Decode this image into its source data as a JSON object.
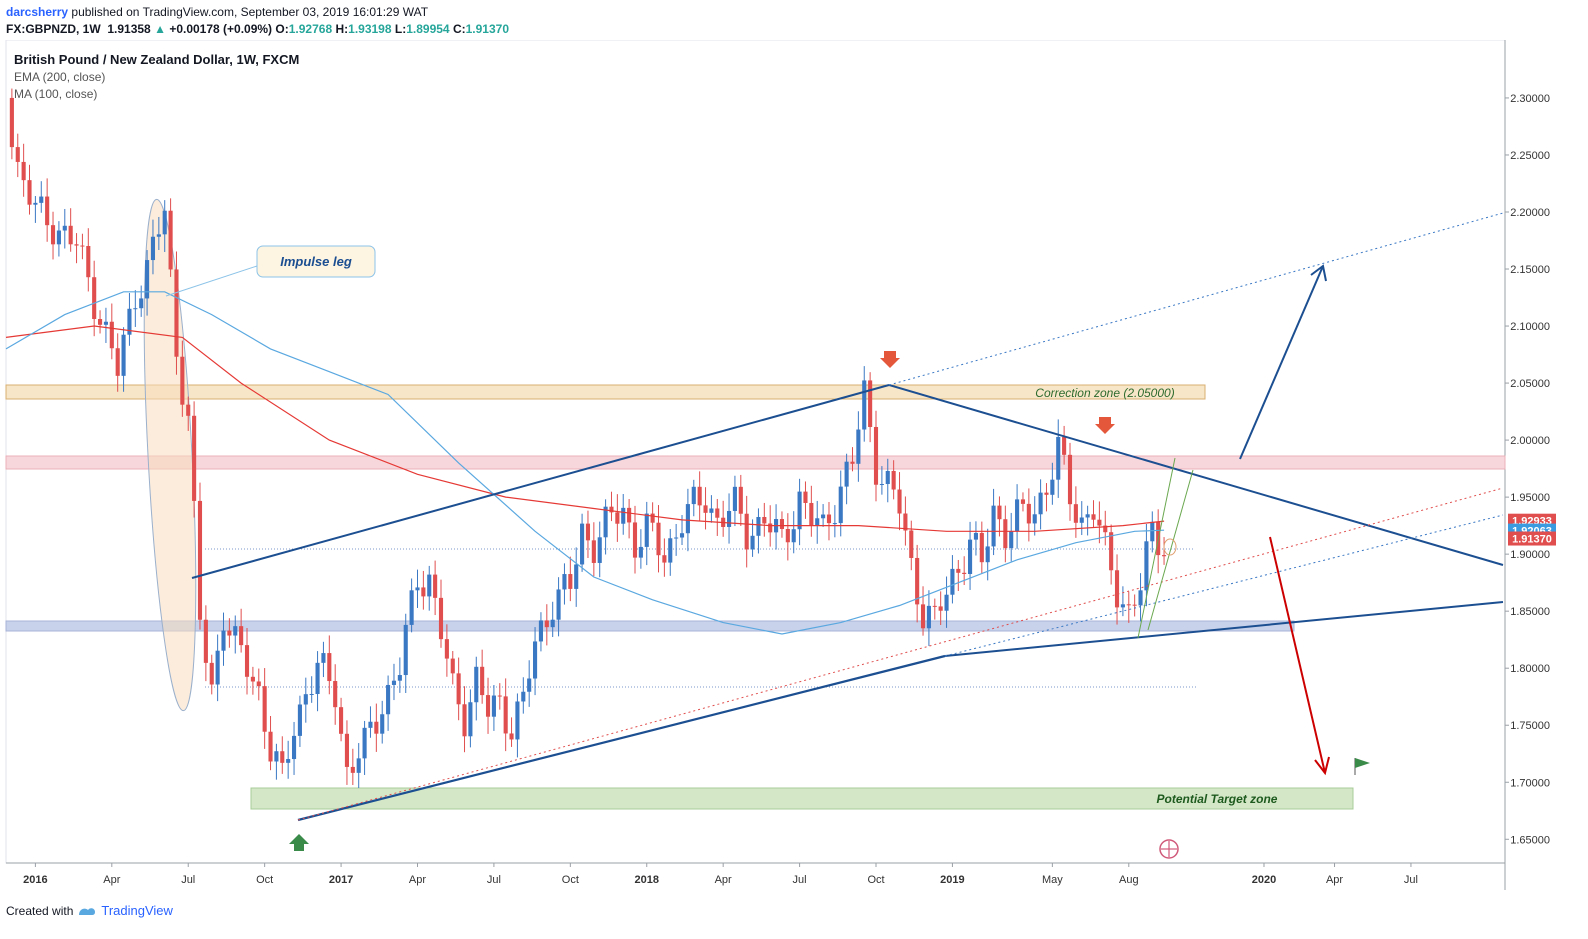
{
  "header": {
    "author": "darcsherry",
    "published_text": "published on TradingView.com, September 03, 2019 16:01:29 WAT",
    "symbol": "FX:GBPNZD, 1W",
    "last": "1.91358",
    "change": "+0.00178 (+0.09%)",
    "o_label": "O:",
    "o": "1.92768",
    "h_label": "H:",
    "h": "1.93198",
    "l_label": "L:",
    "l": "1.89954",
    "c_label": "C:",
    "c": "1.91370"
  },
  "legend": {
    "title": "British Pound / New Zealand Dollar, 1W, FXCM",
    "ema": "EMA (200, close)",
    "ma": "MA (100, close)"
  },
  "footer": {
    "created_with": "Created with",
    "brand": "TradingView"
  },
  "colors": {
    "up": "#3a78c4",
    "down": "#e04e4e",
    "ema": "#e53935",
    "ma": "#5aa8e0",
    "trend": "#1c4f91",
    "target_arrow": "#cc0000",
    "zone_orange": "#f8e6c8",
    "zone_pink": "#f8d7dc",
    "zone_blue": "#c8d2ea",
    "zone_green": "#d4e8c8"
  },
  "chart_data": {
    "type": "candlestick",
    "title": "British Pound / New Zealand Dollar, 1W, FXCM",
    "x_tick_labels": [
      "2016",
      "Apr",
      "Jul",
      "Oct",
      "2017",
      "Apr",
      "Jul",
      "Oct",
      "2018",
      "Apr",
      "Jul",
      "Oct",
      "2019",
      "May",
      "Aug",
      "2020",
      "Apr",
      "Jul"
    ],
    "x_tick_weeks": [
      0,
      13,
      26,
      39,
      52,
      65,
      78,
      91,
      104,
      117,
      130,
      143,
      156,
      173,
      186,
      209,
      221,
      234
    ],
    "y_tick_labels": [
      "2.30000",
      "2.25000",
      "2.20000",
      "2.15000",
      "2.10000",
      "2.05000",
      "2.00000",
      "1.95000",
      "1.90000",
      "1.85000",
      "1.80000",
      "1.75000",
      "1.70000",
      "1.65000"
    ],
    "y_ticks": [
      2.3,
      2.25,
      2.2,
      2.15,
      2.1,
      2.05,
      2.0,
      1.95,
      1.9,
      1.85,
      1.8,
      1.75,
      1.7,
      1.65
    ],
    "ylim": [
      1.6292,
      2.3508
    ],
    "xlim_weeks": [
      -5,
      250
    ],
    "price_labels": [
      {
        "text": "1.92933",
        "value": 1.92933,
        "color": "#e04e4e"
      },
      {
        "text": "1.92063",
        "value": 1.92063,
        "color": "#3a9be0"
      },
      {
        "text": "1.91370",
        "value": 1.9137,
        "color": "#e04e4e"
      }
    ],
    "annotations": {
      "impulse_leg": "Impulse leg",
      "correction_zone": "Correction zone (2.05000)",
      "target_zone": "Potential Target zone"
    },
    "anchor_closes": [
      [
        -5,
        2.3
      ],
      [
        -3,
        2.24
      ],
      [
        0,
        2.2
      ],
      [
        3,
        2.19
      ],
      [
        7,
        2.17
      ],
      [
        11,
        2.11
      ],
      [
        14,
        2.06
      ],
      [
        17,
        2.13
      ],
      [
        19,
        2.15
      ],
      [
        22,
        2.2
      ],
      [
        24,
        2.08
      ],
      [
        26,
        2.02
      ],
      [
        28,
        1.84
      ],
      [
        30,
        1.78
      ],
      [
        32,
        1.85
      ],
      [
        34,
        1.82
      ],
      [
        36,
        1.8
      ],
      [
        38,
        1.78
      ],
      [
        40,
        1.73
      ],
      [
        42,
        1.7
      ],
      [
        44,
        1.75
      ],
      [
        46,
        1.78
      ],
      [
        48,
        1.8
      ],
      [
        51,
        1.78
      ],
      [
        53,
        1.71
      ],
      [
        56,
        1.73
      ],
      [
        59,
        1.77
      ],
      [
        62,
        1.8
      ],
      [
        65,
        1.88
      ],
      [
        67,
        1.88
      ],
      [
        69,
        1.83
      ],
      [
        71,
        1.78
      ],
      [
        73,
        1.76
      ],
      [
        75,
        1.79
      ],
      [
        77,
        1.76
      ],
      [
        79,
        1.77
      ],
      [
        81,
        1.75
      ],
      [
        83,
        1.77
      ],
      [
        85,
        1.82
      ],
      [
        88,
        1.86
      ],
      [
        91,
        1.87
      ],
      [
        93,
        1.92
      ],
      [
        95,
        1.91
      ],
      [
        98,
        1.93
      ],
      [
        100,
        1.94
      ],
      [
        102,
        1.91
      ],
      [
        104,
        1.92
      ],
      [
        107,
        1.9
      ],
      [
        110,
        1.93
      ],
      [
        114,
        1.95
      ],
      [
        116,
        1.93
      ],
      [
        119,
        1.94
      ],
      [
        121,
        1.92
      ],
      [
        124,
        1.93
      ],
      [
        127,
        1.91
      ],
      [
        130,
        1.95
      ],
      [
        132,
        1.93
      ],
      [
        134,
        1.92
      ],
      [
        137,
        1.96
      ],
      [
        139,
        1.98
      ],
      [
        141,
        2.04
      ],
      [
        143,
        1.98
      ],
      [
        145,
        1.96
      ],
      [
        147,
        1.94
      ],
      [
        149,
        1.89
      ],
      [
        151,
        1.85
      ],
      [
        153,
        1.84
      ],
      [
        156,
        1.88
      ],
      [
        159,
        1.91
      ],
      [
        161,
        1.89
      ],
      [
        163,
        1.94
      ],
      [
        165,
        1.92
      ],
      [
        167,
        1.93
      ],
      [
        170,
        1.94
      ],
      [
        172,
        1.96
      ],
      [
        174,
        1.99
      ],
      [
        176,
        1.95
      ],
      [
        178,
        1.93
      ],
      [
        180,
        1.94
      ],
      [
        182,
        1.9
      ],
      [
        184,
        1.87
      ],
      [
        186,
        1.85
      ],
      [
        188,
        1.87
      ],
      [
        190,
        1.92
      ],
      [
        192,
        1.91
      ]
    ],
    "ema_200": [
      [
        -5,
        2.09
      ],
      [
        10,
        2.1
      ],
      [
        25,
        2.09
      ],
      [
        35,
        2.05
      ],
      [
        50,
        2.0
      ],
      [
        65,
        1.97
      ],
      [
        80,
        1.95
      ],
      [
        95,
        1.94
      ],
      [
        110,
        1.93
      ],
      [
        125,
        1.925
      ],
      [
        140,
        1.925
      ],
      [
        155,
        1.92
      ],
      [
        170,
        1.92
      ],
      [
        185,
        1.925
      ],
      [
        192,
        1.929
      ]
    ],
    "ma_100": [
      [
        -5,
        2.08
      ],
      [
        5,
        2.11
      ],
      [
        15,
        2.13
      ],
      [
        22,
        2.13
      ],
      [
        30,
        2.11
      ],
      [
        40,
        2.08
      ],
      [
        50,
        2.06
      ],
      [
        60,
        2.04
      ],
      [
        72,
        1.98
      ],
      [
        85,
        1.92
      ],
      [
        95,
        1.88
      ],
      [
        105,
        1.86
      ],
      [
        117,
        1.84
      ],
      [
        127,
        1.83
      ],
      [
        137,
        1.84
      ],
      [
        147,
        1.855
      ],
      [
        157,
        1.875
      ],
      [
        167,
        1.895
      ],
      [
        177,
        1.91
      ],
      [
        187,
        1.92
      ],
      [
        192,
        1.921
      ]
    ]
  }
}
